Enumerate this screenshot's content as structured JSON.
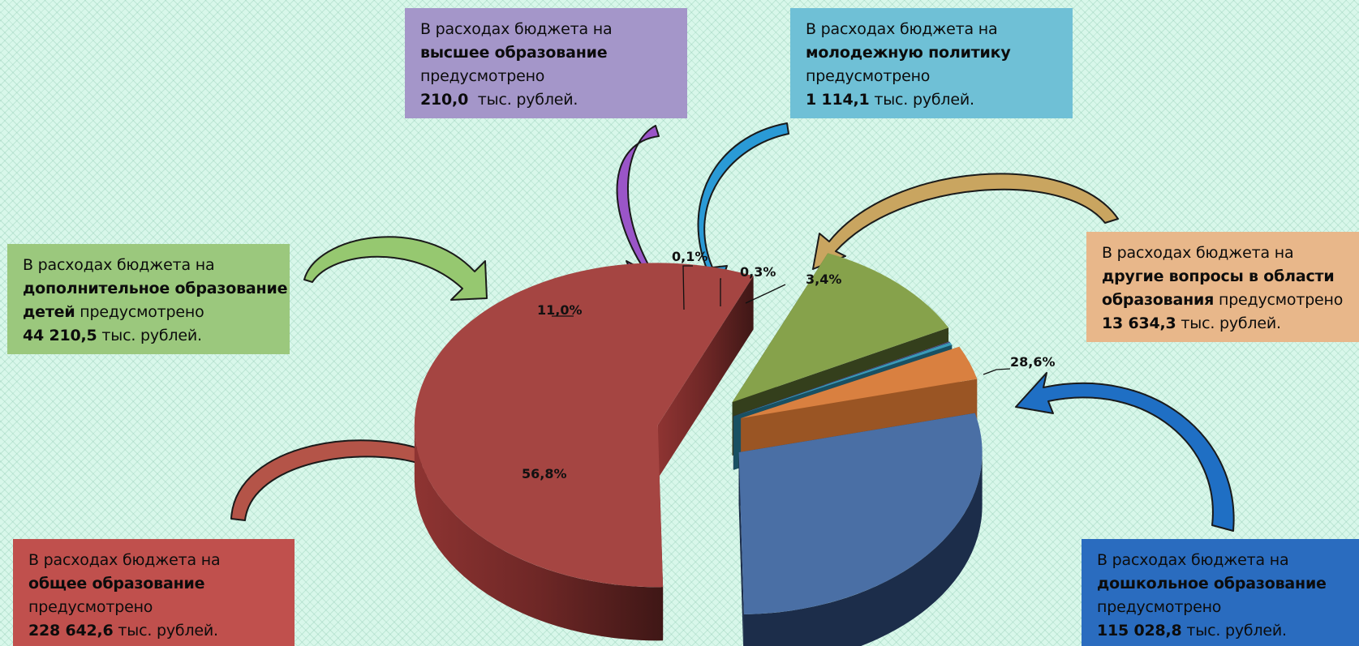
{
  "colors": {
    "higher": "#a496c9",
    "youth": "#6fc0d6",
    "additional": "#9bc87d",
    "other": "#e8b78a",
    "general": "#c0504d",
    "preschool": "#2a6cbf"
  },
  "boxes": {
    "higher": {
      "prefix": "В расходах бюджета на",
      "category": "высшее образование",
      "verb": "предусмотрено",
      "amount": "210,0",
      "unit": "тыс. рублей."
    },
    "youth": {
      "prefix": "В расходах бюджета на",
      "category": "молодежную политику",
      "verb": "предусмотрено",
      "amount": "1 114,1",
      "unit": "тыс. рублей."
    },
    "additional": {
      "prefix": "В расходах бюджета на",
      "category_line1": "дополнительное образование",
      "category_line2": "детей",
      "verb": "предусмотрено",
      "amount": "44 210,5",
      "unit": "тыс. рублей."
    },
    "other": {
      "prefix": "В расходах бюджета на",
      "category_line1": "другие вопросы в области",
      "category_line2": "образования",
      "verb": "предусмотрено",
      "amount": "13 634,3",
      "unit": "тыс. рублей."
    },
    "general": {
      "prefix": "В расходах бюджета на",
      "category": "общее образование",
      "verb": "предусмотрено",
      "amount": "228 642,6",
      "unit": "тыс. рублей."
    },
    "preschool": {
      "prefix": "В расходах бюджета на",
      "category": "дошкольное образование",
      "verb": "предусмотрено",
      "amount": "115 028,8",
      "unit": "тыс. рублей."
    }
  },
  "chart_data": {
    "type": "pie",
    "title": "",
    "categories": [
      "Дошкольное образование",
      "Общее образование",
      "Дополнительное образование детей",
      "Высшее образование",
      "Молодежная политика",
      "Другие вопросы в области образования"
    ],
    "values": [
      115028.8,
      228642.6,
      44210.5,
      210.0,
      1114.1,
      13634.3
    ],
    "percent_labels": [
      "28,6%",
      "56,8%",
      "11,0%",
      "0,1%",
      "0,3%",
      "3,4%"
    ],
    "slice_colors": [
      "#4a6fa5",
      "#a54542",
      "#86a24b",
      "#6a5a9e",
      "#3a9ab8",
      "#d98040"
    ],
    "legend": "none"
  }
}
